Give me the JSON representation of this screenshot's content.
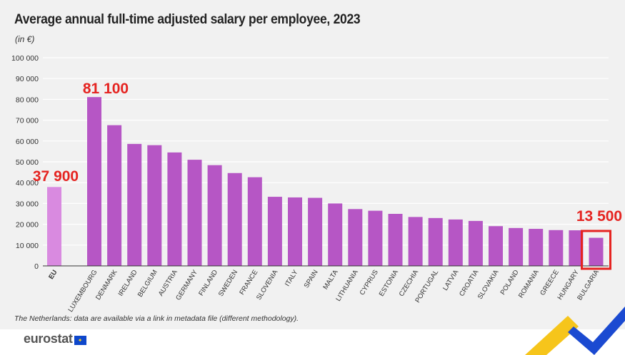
{
  "title": "Average annual full-time adjusted salary per employee, 2023",
  "unit": "(in €)",
  "note": "The Netherlands: data are available via a link in metadata file (different methodology).",
  "logo": {
    "text": "eurostat",
    "icon": "eu-flag-icon"
  },
  "colors": {
    "eu_bar": "#d98ae0",
    "country_bar": "#b656c5",
    "highlight": "#e52421",
    "axis": "#333333",
    "grid": "#ffffff"
  },
  "annotations": {
    "eu": "37 900",
    "max": "81 100",
    "min": "13 500"
  },
  "chart_data": {
    "type": "bar",
    "title": "Average annual full-time adjusted salary per employee, 2023",
    "ylabel": "(in €)",
    "ylim": [
      0,
      100000
    ],
    "yticks": [
      "0",
      "10 000",
      "20 000",
      "30 000",
      "40 000",
      "50 000",
      "60 000",
      "70 000",
      "80 000",
      "90 000",
      "100 000"
    ],
    "categories": [
      "EU",
      "LUXEMBOURG",
      "DENMARK",
      "IRELAND",
      "BELGIUM",
      "AUSTRIA",
      "GERMANY",
      "FINLAND",
      "SWEDEN",
      "FRANCE",
      "SLOVENIA",
      "ITALY",
      "SPAIN",
      "MALTA",
      "LITHUANIA",
      "CYPRUS",
      "ESTONIA",
      "CZECHIA",
      "PORTUGAL",
      "LATVIA",
      "CROATIA",
      "SLOVAKIA",
      "POLAND",
      "ROMANIA",
      "GREECE",
      "HUNGARY",
      "BULGARIA"
    ],
    "values": [
      37900,
      81100,
      67600,
      58600,
      58000,
      54500,
      51000,
      48400,
      44600,
      42600,
      33200,
      32900,
      32700,
      30000,
      27300,
      26500,
      25000,
      23500,
      23000,
      22300,
      21600,
      19100,
      18200,
      17800,
      17200,
      17100,
      13500
    ],
    "grid": true,
    "legend": "none"
  }
}
